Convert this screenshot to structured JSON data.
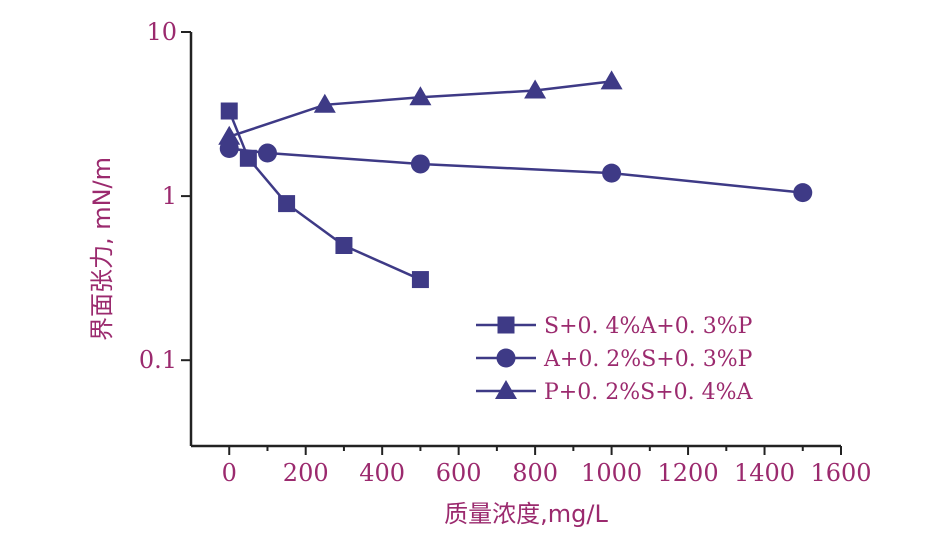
{
  "chart_data": {
    "type": "line",
    "xlabel": "质量浓度,mg/L",
    "ylabel": "界面张力, mN/m",
    "x_ticks": [
      "0",
      "200",
      "400",
      "600",
      "800",
      "1000",
      "1200",
      "1400",
      "1600"
    ],
    "y_ticks": [
      "10",
      "1",
      "0.1"
    ],
    "xlim": [
      -100,
      1600
    ],
    "ylim": [
      0.03,
      10
    ],
    "y_scale": "log",
    "colors": {
      "series": "#3e3a86",
      "axis": "#222222",
      "text": "#9b2a6e"
    },
    "series": [
      {
        "name": "S+0. 4%A+0. 3%P",
        "marker": "square",
        "points": [
          [
            0,
            3.3
          ],
          [
            50,
            1.7
          ],
          [
            150,
            0.9
          ],
          [
            300,
            0.5
          ],
          [
            500,
            0.31
          ]
        ]
      },
      {
        "name": "A+0. 2%S+0. 3%P",
        "marker": "circle",
        "points": [
          [
            0,
            1.95
          ],
          [
            100,
            1.83
          ],
          [
            500,
            1.57
          ],
          [
            1000,
            1.38
          ],
          [
            1500,
            1.05
          ]
        ]
      },
      {
        "name": "P+0. 2%S+0. 4%A",
        "marker": "triangle",
        "points": [
          [
            0,
            2.3
          ],
          [
            250,
            3.6
          ],
          [
            500,
            4.0
          ],
          [
            800,
            4.4
          ],
          [
            1000,
            5.0
          ]
        ]
      }
    ]
  }
}
